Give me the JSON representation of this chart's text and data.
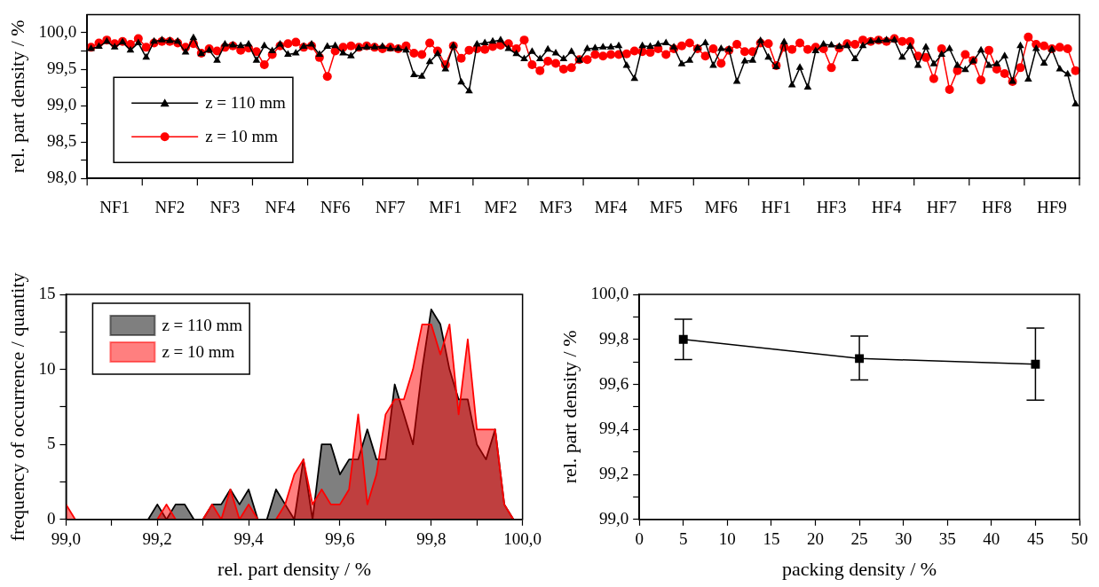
{
  "chart_data": [
    {
      "type": "line",
      "ylabel": "rel. part density / %",
      "legend": "bottom left",
      "ylim": [
        98,
        100.25
      ],
      "yticks": [
        {
          "value": 98,
          "label": "98,0"
        },
        {
          "value": 98.25,
          "label": null
        },
        {
          "value": 98.5,
          "label": "98,5"
        },
        {
          "value": 98.75,
          "label": null
        },
        {
          "value": 99,
          "label": "99,0"
        },
        {
          "value": 99.25,
          "label": null
        },
        {
          "value": 99.5,
          "label": "99,5"
        },
        {
          "value": 99.75,
          "label": null
        },
        {
          "value": 100,
          "label": "100,0"
        }
      ],
      "categories": [
        null,
        null,
        null,
        "NF1",
        null,
        null,
        null,
        null,
        null,
        null,
        "NF2",
        null,
        null,
        null,
        null,
        null,
        null,
        "NF3",
        null,
        null,
        null,
        null,
        null,
        null,
        "NF4",
        null,
        null,
        null,
        null,
        null,
        null,
        "NF6",
        null,
        null,
        null,
        null,
        null,
        null,
        "NF7",
        null,
        null,
        null,
        null,
        null,
        null,
        "MF1",
        null,
        null,
        null,
        null,
        null,
        null,
        "MF2",
        null,
        null,
        null,
        null,
        null,
        null,
        "MF3",
        null,
        null,
        null,
        null,
        null,
        null,
        "MF4",
        null,
        null,
        null,
        null,
        null,
        null,
        "MF5",
        null,
        null,
        null,
        null,
        null,
        null,
        "MF6",
        null,
        null,
        null,
        null,
        null,
        null,
        "HF1",
        null,
        null,
        null,
        null,
        null,
        null,
        "HF3",
        null,
        null,
        null,
        null,
        null,
        null,
        "HF4",
        null,
        null,
        null,
        null,
        null,
        null,
        "HF7",
        null,
        null,
        null,
        null,
        null,
        null,
        "HF8",
        null,
        null,
        null,
        null,
        null,
        null,
        "HF9",
        null,
        null,
        null
      ],
      "series": [
        {
          "name": "z = 110 mm",
          "color": "#000000",
          "marker": "triangle",
          "values": [
            99.78,
            99.81,
            99.88,
            99.8,
            99.87,
            99.76,
            99.86,
            99.66,
            99.88,
            99.9,
            99.89,
            99.88,
            99.73,
            99.93,
            99.71,
            99.76,
            99.62,
            99.84,
            99.83,
            99.82,
            99.84,
            99.62,
            99.82,
            99.75,
            99.84,
            99.7,
            99.72,
            99.81,
            99.84,
            99.7,
            99.81,
            99.82,
            99.72,
            99.68,
            99.79,
            99.8,
            99.8,
            99.81,
            99.78,
            99.78,
            99.76,
            99.42,
            99.4,
            99.6,
            99.71,
            99.5,
            99.82,
            99.32,
            99.2,
            99.84,
            99.86,
            99.88,
            99.9,
            99.78,
            99.71,
            99.64,
            99.74,
            99.64,
            99.77,
            99.72,
            99.64,
            99.74,
            99.62,
            99.78,
            99.79,
            99.8,
            99.8,
            99.82,
            99.55,
            99.37,
            99.82,
            99.81,
            99.84,
            99.86,
            99.8,
            99.57,
            99.62,
            99.79,
            99.86,
            99.55,
            99.78,
            99.77,
            99.33,
            99.61,
            99.62,
            99.89,
            99.66,
            99.53,
            99.87,
            99.28,
            99.52,
            99.25,
            99.75,
            99.84,
            99.83,
            99.81,
            99.82,
            99.64,
            99.82,
            99.88,
            99.89,
            99.9,
            99.9,
            99.66,
            99.81,
            99.55,
            99.8,
            99.57,
            99.7,
            99.78,
            99.55,
            99.49,
            99.61,
            99.76,
            99.55,
            99.57,
            99.68,
            99.33,
            99.82,
            99.36,
            99.78,
            99.58,
            99.77,
            99.5,
            99.43,
            99.02
          ]
        },
        {
          "name": "z = 10 mm",
          "color": "#ff0000",
          "marker": "circle",
          "values": [
            99.8,
            99.86,
            99.9,
            99.85,
            99.88,
            99.84,
            99.92,
            99.8,
            99.86,
            99.88,
            99.88,
            99.86,
            99.8,
            99.85,
            99.72,
            99.78,
            99.75,
            99.8,
            99.82,
            99.76,
            99.79,
            99.74,
            99.56,
            99.7,
            99.82,
            99.85,
            99.87,
            99.8,
            99.82,
            99.66,
            99.4,
            99.75,
            99.8,
            99.82,
            99.8,
            99.82,
            99.8,
            99.78,
            99.8,
            99.78,
            99.82,
            99.72,
            99.7,
            99.86,
            99.75,
            99.56,
            99.82,
            99.65,
            99.76,
            99.78,
            99.77,
            99.81,
            99.83,
            99.85,
            99.78,
            99.9,
            99.56,
            99.48,
            99.61,
            99.58,
            99.5,
            99.52,
            99.63,
            99.63,
            99.7,
            99.68,
            99.7,
            99.7,
            99.71,
            99.75,
            99.74,
            99.73,
            99.78,
            99.7,
            99.78,
            99.82,
            99.86,
            99.78,
            99.68,
            99.78,
            99.58,
            99.76,
            99.84,
            99.74,
            99.74,
            99.86,
            99.85,
            99.55,
            99.8,
            99.77,
            99.86,
            99.77,
            99.8,
            99.78,
            99.52,
            99.79,
            99.85,
            99.84,
            99.9,
            99.88,
            99.9,
            99.88,
            99.92,
            99.88,
            99.88,
            99.68,
            99.66,
            99.37,
            99.78,
            99.22,
            99.48,
            99.7,
            99.62,
            99.35,
            99.76,
            99.5,
            99.44,
            99.33,
            99.52,
            99.94,
            99.84,
            99.82,
            99.78,
            99.8,
            99.78,
            99.48
          ]
        }
      ]
    },
    {
      "type": "area",
      "xlabel": "rel. part density / %",
      "ylabel": "frequency of occurrence / quantity",
      "legend": "top left",
      "xlim": [
        99,
        100
      ],
      "ylim": [
        0,
        15
      ],
      "xticks": [
        {
          "value": 99,
          "label": "99,0"
        },
        {
          "value": 99.1,
          "label": null
        },
        {
          "value": 99.2,
          "label": "99,2"
        },
        {
          "value": 99.3,
          "label": null
        },
        {
          "value": 99.4,
          "label": "99,4"
        },
        {
          "value": 99.5,
          "label": null
        },
        {
          "value": 99.6,
          "label": "99,6"
        },
        {
          "value": 99.7,
          "label": null
        },
        {
          "value": 99.8,
          "label": "99,8"
        },
        {
          "value": 99.9,
          "label": null
        },
        {
          "value": 100,
          "label": "100,0"
        }
      ],
      "yticks": [
        0,
        {
          "value": 2.5,
          "label": null
        },
        5,
        {
          "value": 7.5,
          "label": null
        },
        10,
        {
          "value": 12.5,
          "label": null
        },
        15
      ],
      "x": [
        99.0,
        99.02,
        99.04,
        99.06,
        99.08,
        99.1,
        99.12,
        99.14,
        99.16,
        99.18,
        99.2,
        99.22,
        99.24,
        99.26,
        99.28,
        99.3,
        99.32,
        99.34,
        99.36,
        99.38,
        99.4,
        99.42,
        99.44,
        99.46,
        99.48,
        99.5,
        99.52,
        99.54,
        99.56,
        99.58,
        99.6,
        99.62,
        99.64,
        99.66,
        99.68,
        99.7,
        99.72,
        99.74,
        99.76,
        99.78,
        99.8,
        99.82,
        99.84,
        99.86,
        99.88,
        99.9,
        99.92,
        99.94,
        99.96,
        99.98,
        100.0
      ],
      "series": [
        {
          "name": "z = 110 mm",
          "color": "#000000",
          "values": [
            0,
            0,
            0,
            0,
            0,
            0,
            0,
            0,
            0,
            0,
            1,
            0,
            1,
            1,
            0,
            0,
            1,
            1,
            2,
            1,
            2,
            0,
            0,
            2,
            1,
            0,
            4,
            0,
            5,
            5,
            3,
            4,
            4,
            6,
            4,
            4,
            9,
            7,
            5,
            10,
            14,
            13,
            10,
            8,
            8,
            5,
            4,
            6,
            1,
            0,
            0
          ]
        },
        {
          "name": "z = 10 mm",
          "color": "#ff0000",
          "values": [
            1,
            0,
            0,
            0,
            0,
            0,
            0,
            0,
            0,
            0,
            0,
            1,
            0,
            0,
            0,
            0,
            1,
            0,
            2,
            0,
            1,
            0,
            0,
            0,
            1,
            3,
            4,
            1,
            2,
            1,
            1,
            2,
            7,
            1,
            3,
            7,
            8,
            8,
            10,
            13,
            13,
            11,
            13,
            7,
            12,
            6,
            6,
            6,
            1,
            0,
            0
          ]
        }
      ]
    },
    {
      "type": "line",
      "xlabel": "packing density / %",
      "ylabel": "rel. part density / %",
      "marker": "square",
      "color": "#000000",
      "xlim": [
        0,
        50
      ],
      "ylim": [
        99,
        100
      ],
      "xticks": [
        0,
        5,
        10,
        15,
        20,
        25,
        30,
        35,
        40,
        45,
        50
      ],
      "yticks": [
        {
          "value": 99,
          "label": "99,0"
        },
        {
          "value": 99.1,
          "label": null
        },
        {
          "value": 99.2,
          "label": "99,2"
        },
        {
          "value": 99.3,
          "label": null
        },
        {
          "value": 99.4,
          "label": "99,4"
        },
        {
          "value": 99.5,
          "label": null
        },
        {
          "value": 99.6,
          "label": "99,6"
        },
        {
          "value": 99.7,
          "label": null
        },
        {
          "value": 99.8,
          "label": "99,8"
        },
        {
          "value": 99.9,
          "label": null
        },
        {
          "value": 100,
          "label": "100,0"
        }
      ],
      "x": [
        5,
        25,
        45
      ],
      "values": [
        99.8,
        99.715,
        99.69
      ],
      "errors": [
        [
          99.71,
          99.89
        ],
        [
          99.62,
          99.815
        ],
        [
          99.53,
          99.85
        ]
      ]
    }
  ]
}
